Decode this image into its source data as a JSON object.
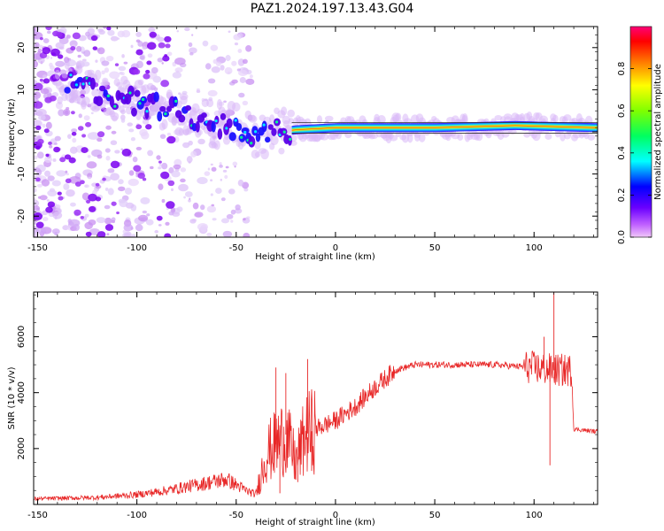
{
  "title": "PAZ1.2024.197.13.43.G04",
  "chart_data": [
    {
      "type": "heatmap",
      "xlabel": "Height of straight line (km)",
      "ylabel": "Frequency (Hz)",
      "xlim": [
        -152,
        132
      ],
      "ylim": [
        -25,
        25
      ],
      "xticks": [
        -150,
        -100,
        -50,
        0,
        50,
        100
      ],
      "yticks": [
        -20,
        -10,
        0,
        10,
        20
      ],
      "colorbar": {
        "label": "Normalized spectral amplitude",
        "range": [
          0,
          1
        ],
        "ticks": [
          "0.0",
          "0.2",
          "0.4",
          "0.6",
          "0.8"
        ],
        "colormap": "gist_rainbow_r (magenta-blue-cyan-green-yellow-red)"
      },
      "ridge": [
        {
          "x": -135,
          "y": 12
        },
        {
          "x": -120,
          "y": 9
        },
        {
          "x": -100,
          "y": 7
        },
        {
          "x": -80,
          "y": 5
        },
        {
          "x": -65,
          "y": 2
        },
        {
          "x": -50,
          "y": 1
        },
        {
          "x": -40,
          "y": -1
        },
        {
          "x": -30,
          "y": 0
        },
        {
          "x": -20,
          "y": 0.5
        },
        {
          "x": 0,
          "y": 1
        },
        {
          "x": 50,
          "y": 1
        },
        {
          "x": 90,
          "y": 1.5
        },
        {
          "x": 130,
          "y": 1
        }
      ],
      "grid": false
    },
    {
      "type": "line",
      "xlabel": "Height of straight line (km)",
      "ylabel": "SNR (10 * v/v)",
      "xlim": [
        -152,
        132
      ],
      "ylim": [
        0,
        7600
      ],
      "xticks": [
        -150,
        -100,
        -50,
        0,
        50,
        100
      ],
      "yticks": [
        2000,
        4000,
        6000
      ],
      "color": "#e82828",
      "envelope": [
        {
          "x": -152,
          "y": 200
        },
        {
          "x": -120,
          "y": 250
        },
        {
          "x": -100,
          "y": 350
        },
        {
          "x": -85,
          "y": 500
        },
        {
          "x": -70,
          "y": 700
        },
        {
          "x": -55,
          "y": 900
        },
        {
          "x": -45,
          "y": 500
        },
        {
          "x": -40,
          "y": 350
        },
        {
          "x": -35,
          "y": 1800
        },
        {
          "x": -25,
          "y": 2500
        },
        {
          "x": -20,
          "y": 1500
        },
        {
          "x": -15,
          "y": 2500
        },
        {
          "x": -10,
          "y": 2700
        },
        {
          "x": 0,
          "y": 3000
        },
        {
          "x": 10,
          "y": 3500
        },
        {
          "x": 20,
          "y": 4200
        },
        {
          "x": 30,
          "y": 4800
        },
        {
          "x": 40,
          "y": 5000
        },
        {
          "x": 60,
          "y": 5000
        },
        {
          "x": 80,
          "y": 5000
        },
        {
          "x": 100,
          "y": 4900
        },
        {
          "x": 110,
          "y": 4800
        },
        {
          "x": 119,
          "y": 4800
        },
        {
          "x": 120,
          "y": 2700
        },
        {
          "x": 132,
          "y": 2600
        }
      ],
      "spikes": [
        {
          "x": -30,
          "y": 4900
        },
        {
          "x": -28,
          "y": 400
        },
        {
          "x": -25,
          "y": 4700
        },
        {
          "x": -19,
          "y": 800
        },
        {
          "x": -14,
          "y": 5200
        },
        {
          "x": -12,
          "y": 1200
        },
        {
          "x": 105,
          "y": 6000
        },
        {
          "x": 108,
          "y": 1400
        },
        {
          "x": 110,
          "y": 7600
        }
      ],
      "grid": false
    }
  ]
}
